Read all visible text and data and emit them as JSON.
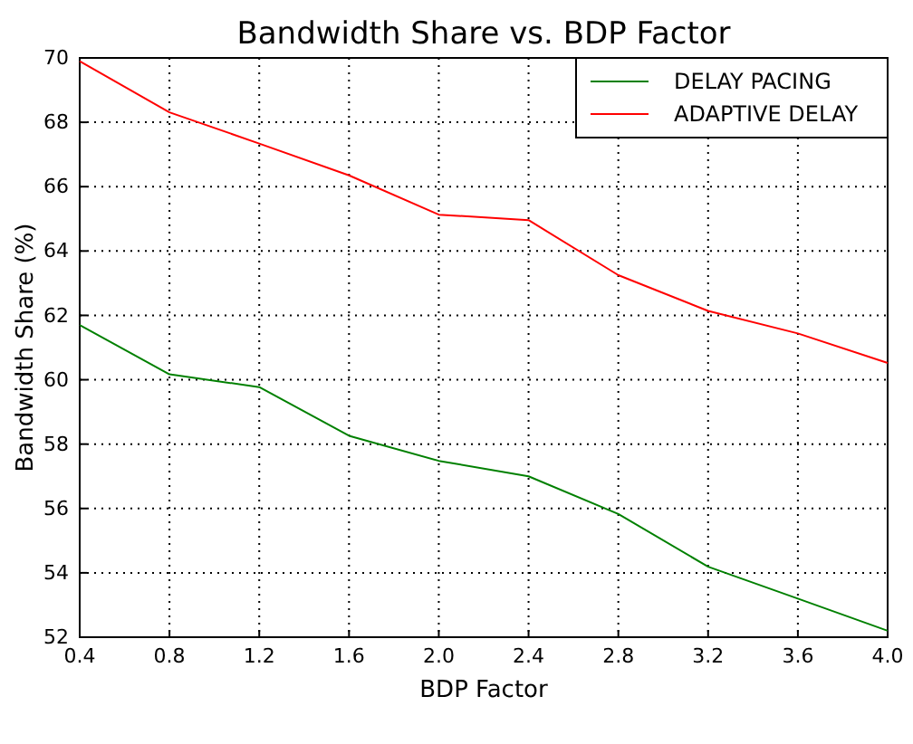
{
  "chart_data": {
    "type": "line",
    "title": "Bandwidth Share vs. BDP Factor",
    "xlabel": "BDP Factor",
    "ylabel": "Bandwidth Share (%)",
    "x": [
      0.4,
      0.8,
      1.2,
      1.6,
      2.0,
      2.4,
      2.8,
      3.2,
      3.6,
      4.0
    ],
    "series": [
      {
        "name": "DELAY PACING",
        "color": "#008000",
        "values": [
          61.7,
          60.17,
          59.77,
          58.26,
          57.48,
          57.0,
          55.83,
          54.19,
          53.2,
          52.2
        ]
      },
      {
        "name": "ADAPTIVE DELAY",
        "color": "#ff0000",
        "values": [
          69.9,
          68.31,
          67.34,
          66.35,
          65.13,
          64.96,
          63.25,
          62.14,
          61.44,
          60.52
        ]
      }
    ],
    "xlim": [
      0.4,
      4.0
    ],
    "xticks": [
      {
        "value": 0.4,
        "label": "0.4"
      },
      {
        "value": 0.8,
        "label": "0.8"
      },
      {
        "value": 1.2,
        "label": "1.2"
      },
      {
        "value": 1.6,
        "label": "1.6"
      },
      {
        "value": 2.0,
        "label": "2.0"
      },
      {
        "value": 2.4,
        "label": "2.4"
      },
      {
        "value": 2.8,
        "label": "2.8"
      },
      {
        "value": 3.2,
        "label": "3.2"
      },
      {
        "value": 3.6,
        "label": "3.6"
      },
      {
        "value": 4.0,
        "label": "4.0"
      }
    ],
    "ylim": [
      52,
      70
    ],
    "yticks": [
      52,
      54,
      56,
      58,
      60,
      62,
      64,
      66,
      68,
      70
    ],
    "grid": true,
    "legend": "top right",
    "line_style": "solid",
    "marker": "none"
  }
}
